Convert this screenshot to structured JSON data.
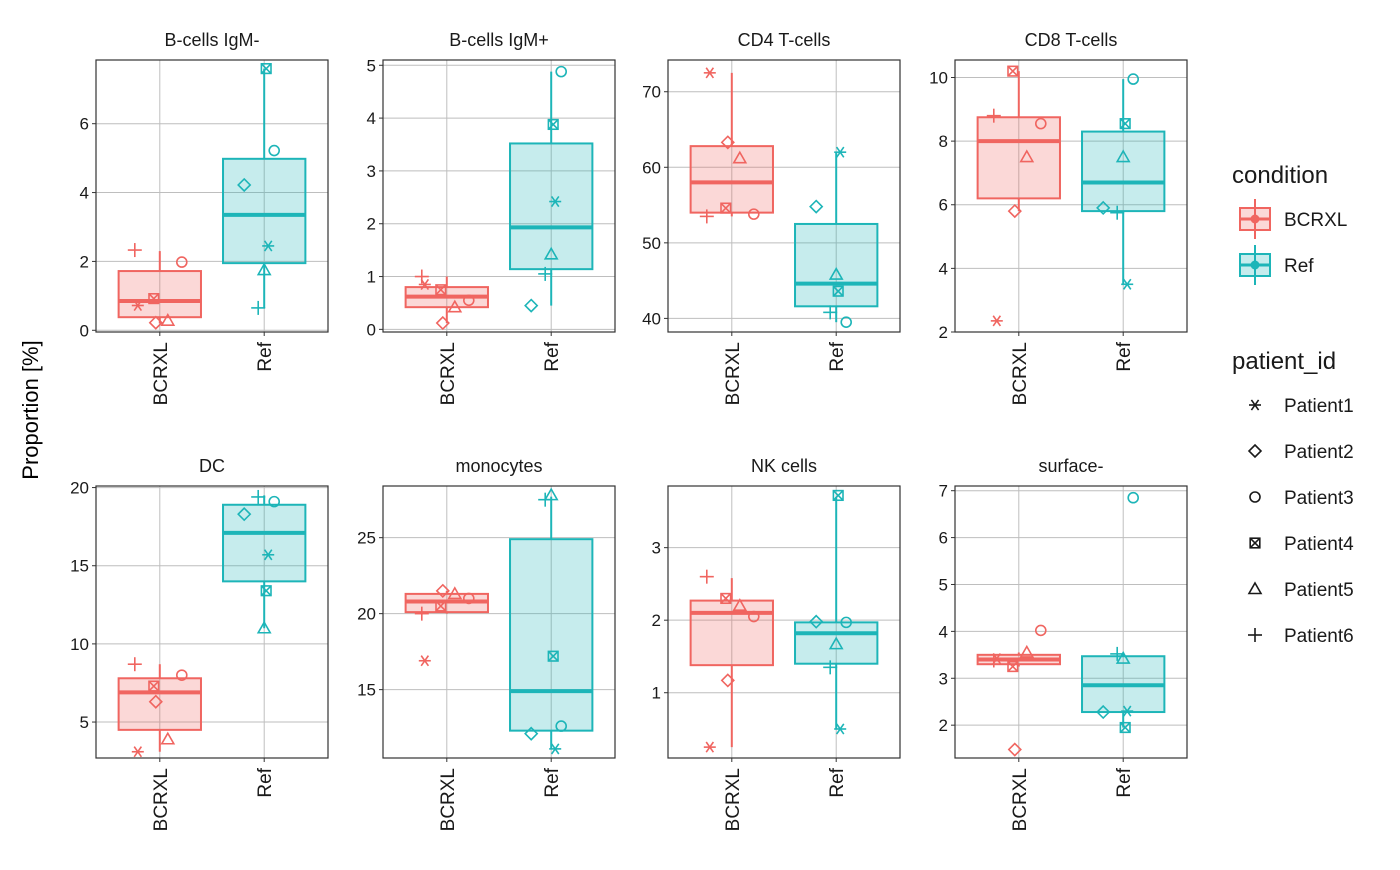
{
  "y_axis_label": "Proportion [%]",
  "legend": {
    "condition_title": "condition",
    "conditions": [
      {
        "key": "BCRXL",
        "label": "BCRXL",
        "color": "#F06560"
      },
      {
        "key": "Ref",
        "label": "Ref",
        "color": "#1DB5B8"
      }
    ],
    "patient_title": "patient_id",
    "patients": [
      {
        "key": "Patient1",
        "label": "Patient1",
        "shape": "asterisk"
      },
      {
        "key": "Patient2",
        "label": "Patient2",
        "shape": "diamond"
      },
      {
        "key": "Patient3",
        "label": "Patient3",
        "shape": "circle"
      },
      {
        "key": "Patient4",
        "label": "Patient4",
        "shape": "square-x"
      },
      {
        "key": "Patient5",
        "label": "Patient5",
        "shape": "triangle"
      },
      {
        "key": "Patient6",
        "label": "Patient6",
        "shape": "plus"
      }
    ]
  },
  "colors": {
    "BCRXL": "#F06560",
    "Ref": "#1DB5B8",
    "grid": "#BEBEBE",
    "panel_border": "#333333"
  },
  "chart_data": [
    {
      "type": "box",
      "title": "B-cells IgM-",
      "categories": [
        "BCRXL",
        "Ref"
      ],
      "ylim": [
        -0.05,
        7.85
      ],
      "yticks": [
        0,
        2,
        4,
        6
      ],
      "boxes": {
        "BCRXL": {
          "lower_whisker": 0.2,
          "q1": 0.38,
          "median": 0.85,
          "q3": 1.72,
          "upper_whisker": 2.3
        },
        "Ref": {
          "lower_whisker": 0.65,
          "q1": 1.95,
          "median": 3.35,
          "q3": 4.98,
          "upper_whisker": 7.6
        }
      },
      "points": {
        "BCRXL": {
          "Patient1": 0.72,
          "Patient2": 0.22,
          "Patient3": 1.98,
          "Patient4": 0.92,
          "Patient5": 0.28,
          "Patient6": 2.33
        },
        "Ref": {
          "Patient1": 2.45,
          "Patient2": 4.22,
          "Patient3": 5.22,
          "Patient4": 7.6,
          "Patient5": 1.75,
          "Patient6": 0.65
        }
      }
    },
    {
      "type": "box",
      "title": "B-cells IgM+",
      "categories": [
        "BCRXL",
        "Ref"
      ],
      "ylim": [
        -0.05,
        5.1
      ],
      "yticks": [
        0,
        1,
        2,
        3,
        4,
        5
      ],
      "boxes": {
        "BCRXL": {
          "lower_whisker": 0.12,
          "q1": 0.42,
          "median": 0.62,
          "q3": 0.8,
          "upper_whisker": 1.0
        },
        "Ref": {
          "lower_whisker": 0.45,
          "q1": 1.14,
          "median": 1.93,
          "q3": 3.52,
          "upper_whisker": 4.88
        }
      },
      "points": {
        "BCRXL": {
          "Patient1": 0.85,
          "Patient2": 0.12,
          "Patient3": 0.55,
          "Patient4": 0.75,
          "Patient5": 0.42,
          "Patient6": 1.0
        },
        "Ref": {
          "Patient1": 2.42,
          "Patient2": 0.45,
          "Patient3": 4.88,
          "Patient4": 3.88,
          "Patient5": 1.42,
          "Patient6": 1.05
        }
      }
    },
    {
      "type": "box",
      "title": "CD4 T-cells",
      "categories": [
        "BCRXL",
        "Ref"
      ],
      "ylim": [
        38.2,
        74.2
      ],
      "yticks": [
        40,
        50,
        60,
        70
      ],
      "boxes": {
        "BCRXL": {
          "lower_whisker": 53.5,
          "q1": 54.0,
          "median": 58.0,
          "q3": 62.8,
          "upper_whisker": 72.5
        },
        "Ref": {
          "lower_whisker": 39.5,
          "q1": 41.6,
          "median": 44.6,
          "q3": 52.5,
          "upper_whisker": 62.0
        }
      },
      "points": {
        "BCRXL": {
          "Patient1": 72.5,
          "Patient2": 63.3,
          "Patient3": 53.8,
          "Patient4": 54.6,
          "Patient5": 61.2,
          "Patient6": 53.5
        },
        "Ref": {
          "Patient1": 62.0,
          "Patient2": 54.8,
          "Patient3": 39.5,
          "Patient4": 43.6,
          "Patient5": 45.8,
          "Patient6": 40.8
        }
      }
    },
    {
      "type": "box",
      "title": "CD8 T-cells",
      "categories": [
        "BCRXL",
        "Ref"
      ],
      "ylim": [
        2.0,
        10.55
      ],
      "yticks": [
        2,
        4,
        6,
        8,
        10
      ],
      "boxes": {
        "BCRXL": {
          "lower_whisker": 5.8,
          "q1": 6.2,
          "median": 8.0,
          "q3": 8.75,
          "upper_whisker": 10.2
        },
        "Ref": {
          "lower_whisker": 3.5,
          "q1": 5.8,
          "median": 6.7,
          "q3": 8.3,
          "upper_whisker": 9.95
        }
      },
      "points": {
        "BCRXL": {
          "Patient1": 2.35,
          "Patient2": 5.8,
          "Patient3": 8.55,
          "Patient4": 10.2,
          "Patient5": 7.5,
          "Patient6": 8.8
        },
        "Ref": {
          "Patient1": 3.5,
          "Patient2": 5.9,
          "Patient3": 9.95,
          "Patient4": 8.55,
          "Patient5": 7.5,
          "Patient6": 5.75
        }
      }
    },
    {
      "type": "box",
      "title": "DC",
      "categories": [
        "BCRXL",
        "Ref"
      ],
      "ylim": [
        2.7,
        20.1
      ],
      "yticks": [
        5,
        10,
        15,
        20
      ],
      "boxes": {
        "BCRXL": {
          "lower_whisker": 3.1,
          "q1": 4.5,
          "median": 6.9,
          "q3": 7.8,
          "upper_whisker": 8.7
        },
        "Ref": {
          "lower_whisker": 11.0,
          "q1": 14.0,
          "median": 17.1,
          "q3": 18.9,
          "upper_whisker": 19.5
        }
      },
      "points": {
        "BCRXL": {
          "Patient1": 3.1,
          "Patient2": 6.3,
          "Patient3": 8.0,
          "Patient4": 7.3,
          "Patient5": 3.9,
          "Patient6": 8.7
        },
        "Ref": {
          "Patient1": 15.7,
          "Patient2": 18.3,
          "Patient3": 19.1,
          "Patient4": 13.4,
          "Patient5": 11.0,
          "Patient6": 19.4
        }
      }
    },
    {
      "type": "box",
      "title": "monocytes",
      "categories": [
        "BCRXL",
        "Ref"
      ],
      "ylim": [
        10.5,
        28.4
      ],
      "yticks": [
        15,
        20,
        25
      ],
      "boxes": {
        "BCRXL": {
          "lower_whisker": 20.0,
          "q1": 20.1,
          "median": 20.8,
          "q3": 21.3,
          "upper_whisker": 21.5
        },
        "Ref": {
          "lower_whisker": 11.1,
          "q1": 12.3,
          "median": 14.9,
          "q3": 24.9,
          "upper_whisker": 27.7
        }
      },
      "points": {
        "BCRXL": {
          "Patient1": 16.9,
          "Patient2": 21.5,
          "Patient3": 21.0,
          "Patient4": 20.5,
          "Patient5": 21.3,
          "Patient6": 20.0
        },
        "Ref": {
          "Patient1": 11.1,
          "Patient2": 12.1,
          "Patient3": 12.6,
          "Patient4": 17.2,
          "Patient5": 27.8,
          "Patient6": 27.5
        }
      }
    },
    {
      "type": "box",
      "title": "NK cells",
      "categories": [
        "BCRXL",
        "Ref"
      ],
      "ylim": [
        0.1,
        3.85
      ],
      "yticks": [
        1,
        2,
        3
      ],
      "boxes": {
        "BCRXL": {
          "lower_whisker": 0.25,
          "q1": 1.38,
          "median": 2.1,
          "q3": 2.27,
          "upper_whisker": 2.58
        },
        "Ref": {
          "lower_whisker": 0.5,
          "q1": 1.4,
          "median": 1.82,
          "q3": 1.97,
          "upper_whisker": 3.7
        }
      },
      "points": {
        "BCRXL": {
          "Patient1": 0.25,
          "Patient2": 1.17,
          "Patient3": 2.05,
          "Patient4": 2.3,
          "Patient5": 2.2,
          "Patient6": 2.6
        },
        "Ref": {
          "Patient1": 0.5,
          "Patient2": 1.98,
          "Patient3": 1.97,
          "Patient4": 3.72,
          "Patient5": 1.67,
          "Patient6": 1.35
        }
      }
    },
    {
      "type": "box",
      "title": "surface-",
      "categories": [
        "BCRXL",
        "Ref"
      ],
      "ylim": [
        1.3,
        7.1
      ],
      "yticks": [
        2,
        3,
        4,
        5,
        6,
        7
      ],
      "boxes": {
        "BCRXL": {
          "lower_whisker": 3.25,
          "q1": 3.3,
          "median": 3.4,
          "q3": 3.5,
          "upper_whisker": 3.55
        },
        "Ref": {
          "lower_whisker": 1.95,
          "q1": 2.28,
          "median": 2.85,
          "q3": 3.47,
          "upper_whisker": 3.55
        }
      },
      "points": {
        "BCRXL": {
          "Patient1": 3.42,
          "Patient2": 1.48,
          "Patient3": 4.02,
          "Patient4": 3.25,
          "Patient5": 3.55,
          "Patient6": 3.38
        },
        "Ref": {
          "Patient1": 2.3,
          "Patient2": 2.28,
          "Patient3": 6.85,
          "Patient4": 1.95,
          "Patient5": 3.42,
          "Patient6": 3.52
        }
      }
    }
  ]
}
